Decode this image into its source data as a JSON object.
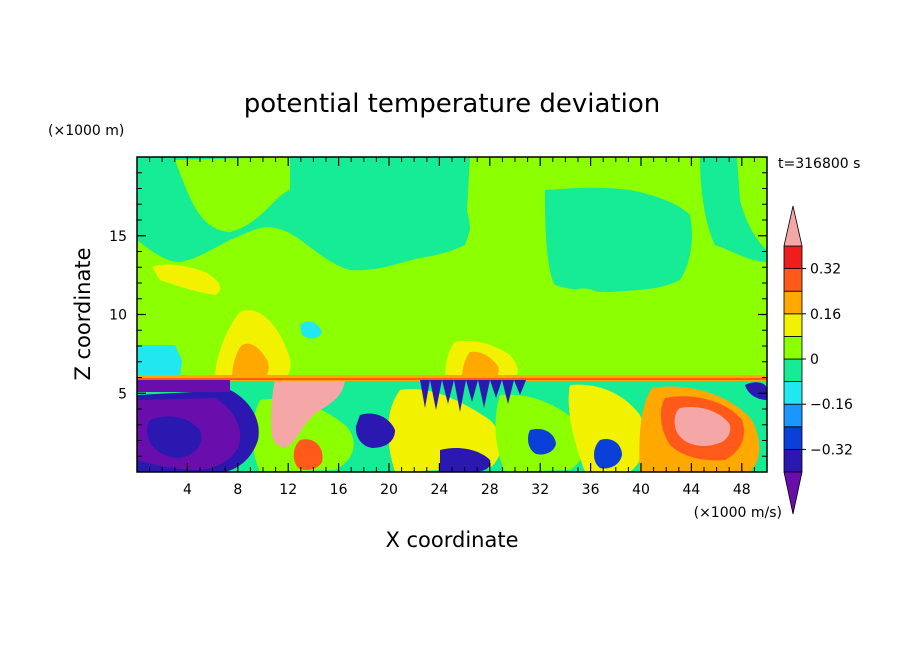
{
  "chart_data": {
    "type": "heatmap",
    "title": "potential temperature deviation",
    "xlabel": "X coordinate",
    "ylabel": "Z coordinate",
    "x_unit": "(×1000 m/s)",
    "y_unit": "(×1000 m)",
    "time_label": "t=316800 s",
    "xlim": [
      0,
      50
    ],
    "ylim": [
      0,
      20
    ],
    "x_ticks": [
      4,
      8,
      12,
      16,
      20,
      24,
      28,
      32,
      36,
      40,
      44,
      48
    ],
    "x_tick_labels": [
      "4",
      "8",
      "12",
      "16",
      "20",
      "24",
      "28",
      "32",
      "36",
      "40",
      "44",
      "48"
    ],
    "y_ticks": [
      5,
      10,
      15
    ],
    "y_tick_labels": [
      "5",
      "10",
      "15"
    ],
    "grid": false,
    "colorbar": {
      "placement": "right",
      "levels": [
        -0.4,
        -0.32,
        -0.24,
        -0.16,
        -0.08,
        0,
        0.08,
        0.16,
        0.24,
        0.32,
        0.4
      ],
      "tick_values": [
        0.32,
        0.16,
        0,
        -0.16,
        -0.32
      ],
      "tick_labels": [
        "0.32",
        "0.16",
        "0",
        "−0.16",
        "−0.32"
      ],
      "colors": [
        "#6a0dad",
        "#2b18b0",
        "#0a3fd8",
        "#1a96ff",
        "#20e8ee",
        "#16eb96",
        "#8cff00",
        "#f2f200",
        "#ffa800",
        "#ff5a1a",
        "#f01d1d",
        "#f5a6a6"
      ],
      "extend": "both"
    }
  }
}
